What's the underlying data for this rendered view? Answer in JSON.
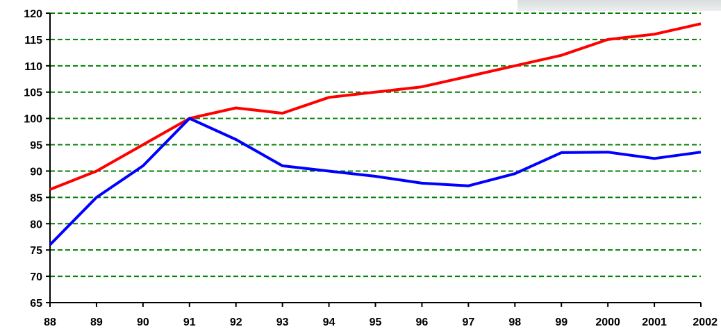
{
  "chart_data": {
    "type": "line",
    "title": "",
    "xlabel": "",
    "ylabel": "",
    "x": [
      "88",
      "89",
      "90",
      "91",
      "92",
      "93",
      "94",
      "95",
      "96",
      "97",
      "98",
      "99",
      "2000",
      "2001",
      "2002"
    ],
    "ylim": [
      65,
      120
    ],
    "yticks": [
      65,
      70,
      75,
      80,
      85,
      90,
      95,
      100,
      105,
      110,
      115,
      120
    ],
    "grid": true,
    "grid_style": "dashed",
    "grid_color": "#008000",
    "axis_color": "#000000",
    "series": [
      {
        "color": "#ff0000",
        "values": [
          86.5,
          90,
          95,
          100,
          102,
          101,
          104,
          105,
          106,
          108,
          110,
          112,
          115,
          116,
          118
        ]
      },
      {
        "color": "#0000ff",
        "values": [
          76,
          85,
          91,
          100,
          96,
          91,
          90,
          89,
          87.7,
          87.2,
          89.5,
          93.5,
          93.6,
          92.4,
          93.6
        ]
      }
    ]
  }
}
